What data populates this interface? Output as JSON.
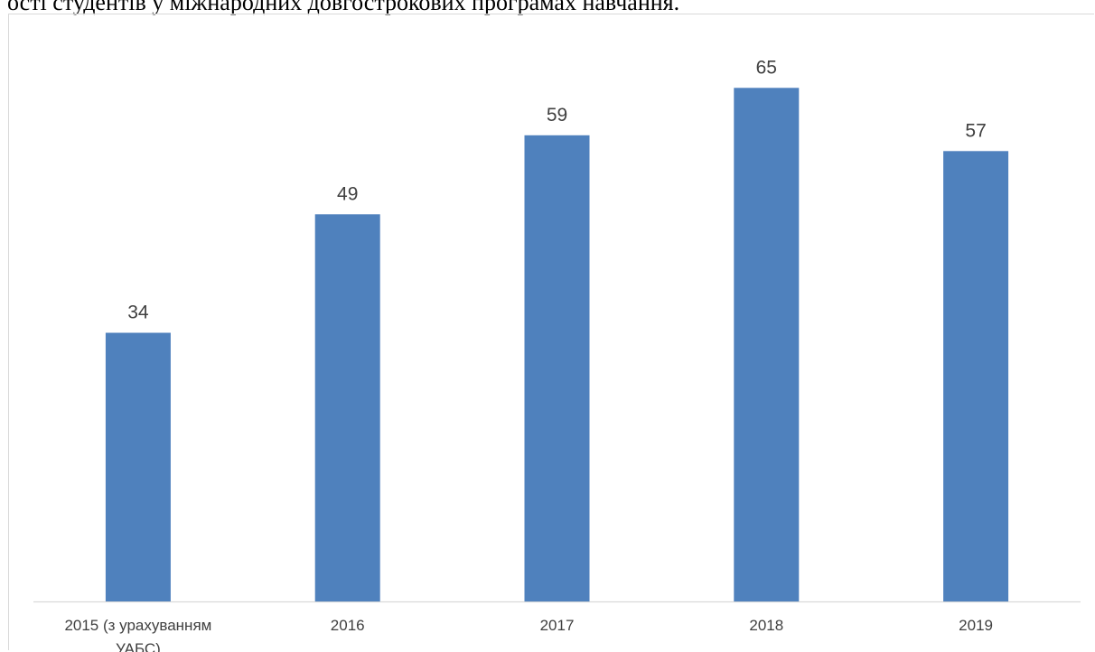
{
  "document": {
    "caption": "ості студентів у міжнародних довгострокових програмах навчання."
  },
  "chart_data": {
    "type": "bar",
    "categories": [
      "2015 (з урахуванням УАБС)",
      "2016",
      "2017",
      "2018",
      "2019"
    ],
    "category_lines": [
      [
        "2015 (з урахуванням",
        "УАБС)"
      ],
      [
        "2016"
      ],
      [
        "2017"
      ],
      [
        "2018"
      ],
      [
        "2019"
      ]
    ],
    "values": [
      34,
      49,
      59,
      65,
      57
    ],
    "data_labels": [
      "34",
      "49",
      "59",
      "65",
      "57"
    ],
    "title": "",
    "xlabel": "",
    "ylabel": "",
    "ylim": [
      0,
      70
    ],
    "grid": false,
    "legend": "none",
    "colors": {
      "bar": "#4f81bd",
      "axis": "#d9d9d9",
      "text": "#404040"
    }
  }
}
